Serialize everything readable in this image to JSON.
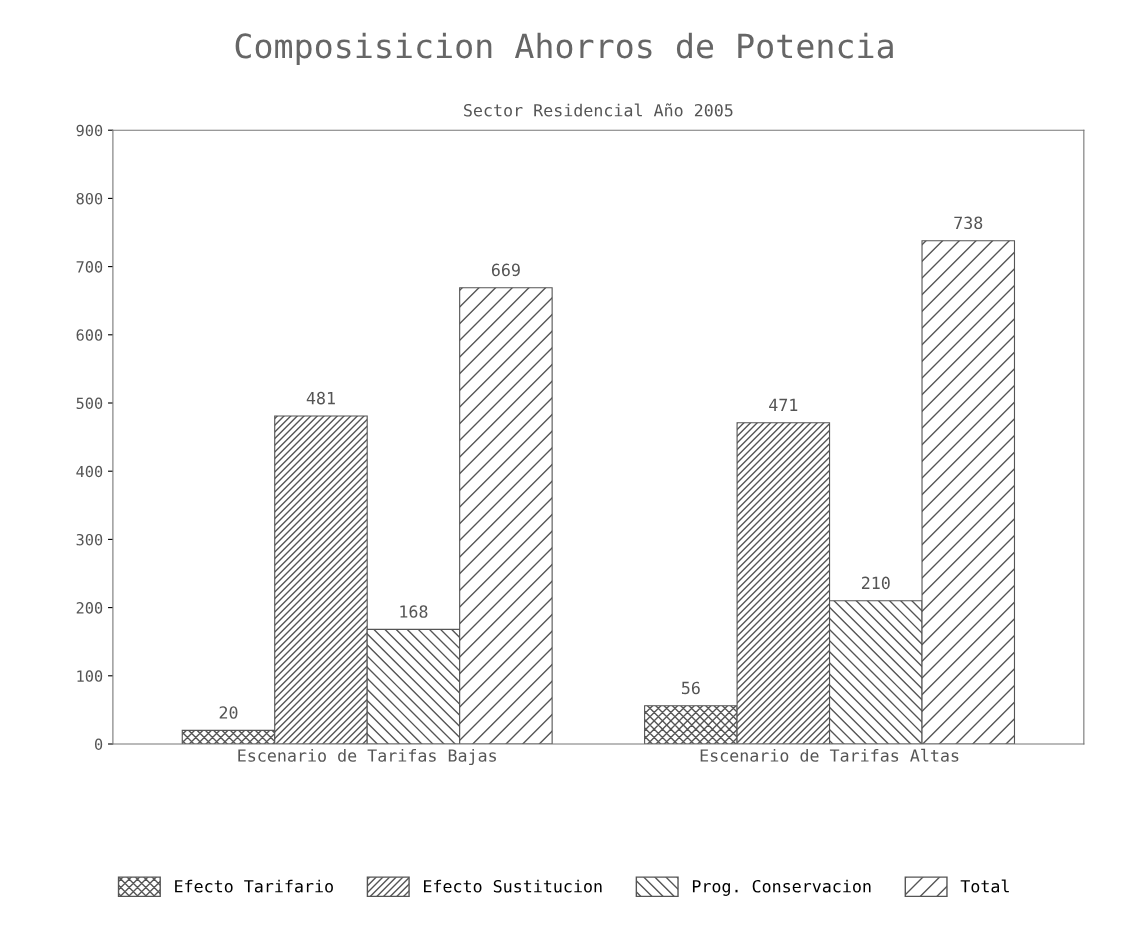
{
  "chart_data": {
    "type": "bar",
    "title": "Composisicion Ahorros de Potencia",
    "subtitle": "Sector Residencial Año 2005",
    "categories": [
      "Escenario de Tarifas Bajas",
      "Escenario de Tarifas Altas"
    ],
    "series": [
      {
        "name": "Efecto Tarifario",
        "color": "#555555",
        "values": [
          20,
          56
        ]
      },
      {
        "name": "Efecto Sustitucion",
        "color": "#555555",
        "values": [
          481,
          471
        ]
      },
      {
        "name": "Prog. Conservacion",
        "color": "#555555",
        "values": [
          168,
          210
        ]
      },
      {
        "name": "Total",
        "color": "#555555",
        "values": [
          669,
          738
        ]
      }
    ],
    "ylim": [
      0,
      900
    ],
    "yticks": [
      0,
      100,
      200,
      300,
      400,
      500,
      600,
      700,
      800,
      900
    ],
    "data_labels": true,
    "grid": false,
    "legend": "bottom"
  }
}
